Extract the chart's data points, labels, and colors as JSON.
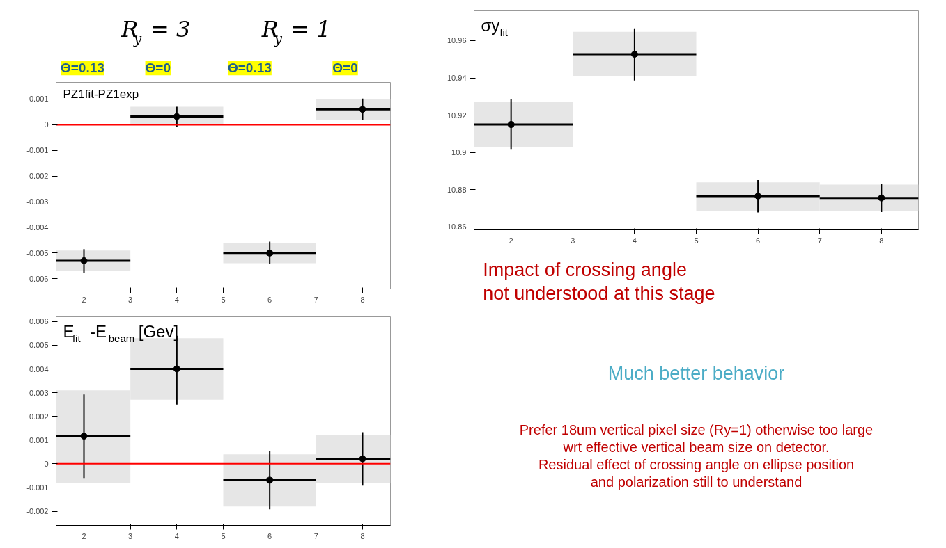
{
  "chart_data": [
    {
      "type": "scatter",
      "title": "PZ1fit-PZ1exp",
      "x": [
        2,
        4,
        6,
        8
      ],
      "xlim": [
        1.4,
        8.6
      ],
      "ylim": [
        -0.0064,
        0.00165
      ],
      "xticks": [
        2,
        3,
        4,
        5,
        6,
        7,
        8
      ],
      "yticks": [
        -0.006,
        -0.005,
        -0.004,
        -0.003,
        -0.002,
        -0.001,
        0,
        0.001
      ],
      "series": [
        {
          "type": "bar",
          "color": "#e6e6e6",
          "x": [
            2.2,
            4,
            6,
            7.8
          ],
          "base": [
            -0.0057,
            0.0,
            -0.0054,
            0.0002
          ],
          "values": [
            0.0008,
            0.0007,
            0.0008,
            0.0008
          ]
        },
        {
          "color": "#000000",
          "marker": "circle",
          "values": [
            -0.0053,
            0.00032,
            -0.005,
            0.0006
          ],
          "errors": [
            [
              -0.00576,
              -0.00485
            ],
            [
              -0.0001,
              0.0007
            ],
            [
              -0.00544,
              -0.00456
            ],
            [
              0.0002,
              0.00102
            ]
          ],
          "xerrors": [
            [
              1.4,
              3
            ],
            [
              3,
              5
            ],
            [
              5,
              7
            ],
            [
              7,
              8.6
            ]
          ]
        }
      ],
      "ref_lines": [
        {
          "axis": "y",
          "value": 0,
          "color": "#ff0000"
        }
      ],
      "annotations": [
        "R$_{y}$ = 3",
        "R$_{y}$ = 1",
        "Θ=0.13",
        "Θ=0",
        "Θ=0.13",
        "Θ=0"
      ]
    },
    {
      "type": "scatter",
      "title": "σy$_{fit}$",
      "x": [
        2,
        4,
        6,
        8
      ],
      "xlim": [
        1.4,
        8.6
      ],
      "ylim": [
        10.8585,
        10.976
      ],
      "xticks": [
        2,
        3,
        4,
        5,
        6,
        7,
        8
      ],
      "yticks": [
        10.86,
        10.88,
        10.9,
        10.92,
        10.94,
        10.96
      ],
      "series": [
        {
          "type": "bar",
          "color": "#e6e6e6",
          "x": [
            2.2,
            4,
            6,
            7.8
          ],
          "base": [
            10.903,
            10.9408,
            10.8686,
            10.8686
          ],
          "values": [
            0.024,
            0.0239,
            0.0154,
            0.0141
          ]
        },
        {
          "color": "#000000",
          "marker": "circle",
          "values": [
            10.915,
            10.9527,
            10.8766,
            10.8756
          ],
          "errors": [
            [
              10.9019,
              10.9284
            ],
            [
              10.9386,
              10.9666
            ],
            [
              10.8678,
              10.8852
            ],
            [
              10.868,
              10.8833
            ]
          ],
          "xerrors": [
            [
              1.4,
              3
            ],
            [
              3,
              5
            ],
            [
              5,
              7
            ],
            [
              7,
              8.6
            ]
          ]
        }
      ],
      "annotations": [
        "Impact of crossing angle\nnot understood at this stage",
        "Much better behavior",
        "Prefer 18um vertical pixel size (Ry=1) otherwise too large\nwrt effective vertical beam size on detector.\nResidual effect of crossing angle on ellipse position\nand polarization still to understand"
      ]
    },
    {
      "type": "scatter",
      "title": "E$_{fit}$-E$_{beam}$ [Gev]",
      "x": [
        2,
        4,
        6,
        8
      ],
      "xlim": [
        1.4,
        8.6
      ],
      "ylim": [
        -0.0026,
        0.0062
      ],
      "xticks": [
        2,
        3,
        4,
        5,
        6,
        7,
        8
      ],
      "yticks": [
        -0.002,
        -0.001,
        0,
        0.001,
        0.002,
        0.003,
        0.004,
        0.005,
        0.006
      ],
      "series": [
        {
          "type": "bar",
          "color": "#e6e6e6",
          "x": [
            2.2,
            4,
            6,
            7.8
          ],
          "base": [
            -0.0008,
            0.0027,
            -0.0018,
            -0.0008
          ],
          "values": [
            0.0039,
            0.0026,
            0.0022,
            0.002
          ]
        },
        {
          "color": "#000000",
          "marker": "circle",
          "values": [
            0.00117,
            0.004,
            -0.00069,
            0.00021
          ],
          "errors": [
            [
              -0.00063,
              0.00292
            ],
            [
              0.0025,
              0.0054
            ],
            [
              -0.00192,
              0.00053
            ],
            [
              -0.00092,
              0.00133
            ]
          ],
          "xerrors": [
            [
              1.4,
              3
            ],
            [
              3,
              5
            ],
            [
              5,
              7
            ],
            [
              7,
              8.6
            ]
          ]
        }
      ],
      "ref_lines": [
        {
          "axis": "y",
          "value": 0,
          "color": "#ff0000"
        }
      ]
    }
  ]
}
